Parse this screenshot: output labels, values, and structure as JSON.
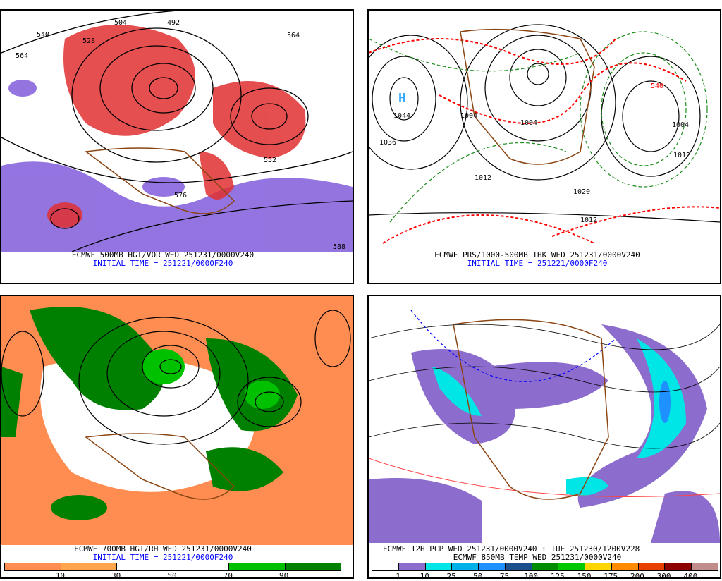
{
  "panels": [
    {
      "caption": "ECMWF 500MB HGT/VOR WED 251231/0000V240",
      "initial_time": "INITIAL TIME = 251221/0000F240",
      "contour_labels": [
        "540",
        "528",
        "564",
        "504",
        "492",
        "564",
        "552",
        "576",
        "588"
      ]
    },
    {
      "caption": "ECMWF PRS/1000-500MB THK WED 251231/0000V240",
      "initial_time": "INITIAL TIME = 251221/0000F240",
      "contour_labels": [
        "1044",
        "1036",
        "1004",
        "1004",
        "1012",
        "1020",
        "1012",
        "540",
        "1004",
        "1012"
      ],
      "high_marker": "H"
    },
    {
      "caption": "ECMWF 700MB HGT/RH WED 251231/0000V240",
      "initial_time": "INITIAL TIME = 251221/0000F240",
      "colorbar": {
        "colors": [
          "#ff8c50",
          "#ffa64d",
          "#ffffff",
          "#ffffff",
          "#00c000",
          "#008000"
        ],
        "labels": [
          "10",
          "30",
          "50",
          "70",
          "90"
        ]
      }
    },
    {
      "caption": "ECMWF 12H PCP WED 251231/0000V240 : TUE 251230/1200V228",
      "caption2": "ECMWF 850MB TEMP WED 251231/0000V240",
      "colorbar": {
        "colors": [
          "#ffffff",
          "#8c6ccc",
          "#00e5e5",
          "#00b0e8",
          "#1e90ff",
          "#1a4f8c",
          "#008c00",
          "#00c800",
          "#ffd700",
          "#ff8c00",
          "#e84000",
          "#8c0000",
          "#c08c8c"
        ],
        "labels": [
          "1",
          "10",
          "25",
          "50",
          "75",
          "100",
          "125",
          "150",
          "175",
          "200",
          "300",
          "400"
        ]
      }
    }
  ]
}
